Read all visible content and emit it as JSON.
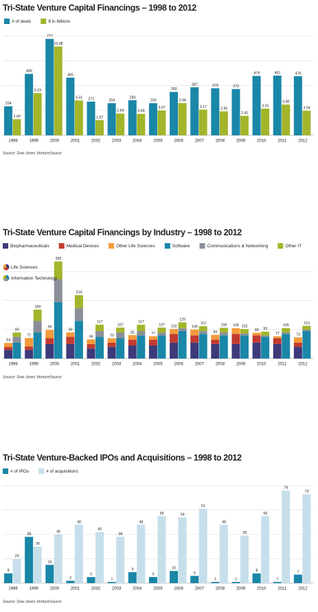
{
  "chart_data": [
    {
      "type": "bar",
      "title": "Tri-State Venture Capital Financings – 1998 to 2012",
      "categories": [
        "1998",
        "1999",
        "2000",
        "2001",
        "2002",
        "2003",
        "2004",
        "2005",
        "2006",
        "2007",
        "2008",
        "2009",
        "2010",
        "2011",
        "2012"
      ],
      "series": [
        {
          "name": "# of deals",
          "color": "#1a87a8",
          "values": [
            234,
            495,
            777,
            465,
            272,
            259,
            283,
            259,
            350,
            387,
            379,
            373,
            479,
            481,
            476
          ]
        },
        {
          "name": "$ in billions",
          "color": "#a3b52a",
          "axis": "y2",
          "values": [
            2.0,
            5.23,
            10.98,
            4.31,
            1.87,
            2.69,
            2.65,
            3.07,
            3.98,
            3.17,
            2.96,
            2.41,
            3.31,
            3.8,
            3.04
          ],
          "value_labels": [
            "2.00",
            "5.23",
            "10.98",
            "4.31",
            "1.87",
            "2.69",
            "2.65",
            "3.07",
            "3.98",
            "3.17",
            "2.96",
            "2.41",
            "3.31",
            "3.80",
            "3.04"
          ]
        }
      ],
      "ylim": [
        0,
        880
      ],
      "yticks": [
        0,
        200,
        400,
        600,
        800
      ],
      "y2lim": [
        0,
        13.5
      ],
      "grid": true,
      "source": "Source: Dow Jones VentureSource"
    },
    {
      "type": "bar",
      "title": "Tri-State Venture Capital Financings by Industry – 1998 to 2012",
      "categories": [
        "1998",
        "1999",
        "2000",
        "2001",
        "2002",
        "2003",
        "2004",
        "2005",
        "2006",
        "2007",
        "2008",
        "2009",
        "2010",
        "2011",
        "2012"
      ],
      "stacks": [
        {
          "name": "Life Sciences",
          "series": [
            {
              "name": "Biopharmaceuticals",
              "color": "#3d3a7a",
              "values": [
                30,
                30,
                50,
                50,
                35,
                40,
                45,
                45,
                55,
                55,
                50,
                50,
                55,
                50,
                40
              ]
            },
            {
              "name": "Medical Devices",
              "color": "#c23b30",
              "values": [
                10,
                12,
                20,
                25,
                15,
                15,
                20,
                20,
                30,
                25,
                15,
                35,
                25,
                20,
                15
              ]
            },
            {
              "name": "Other Life Sciences",
              "color": "#f39a3a",
              "values": [
                14,
                29,
                29,
                15,
                16,
                15,
                16,
                12,
                17,
                20,
                17,
                20,
                9,
                7,
                18
              ]
            }
          ],
          "totals": [
            54,
            71,
            99,
            90,
            66,
            70,
            81,
            77,
            102,
            100,
            82,
            105,
            89,
            77,
            73
          ]
        },
        {
          "name": "Information Technology",
          "series": [
            {
              "name": "Software",
              "color": "#1a87a8",
              "values": [
                55,
                90,
                195,
                130,
                75,
                70,
                80,
                80,
                95,
                85,
                80,
                80,
                75,
                85,
                95
              ]
            },
            {
              "name": "Communications & Networking",
              "color": "#8a8f99",
              "values": [
                20,
                40,
                79,
                44,
                20,
                20,
                15,
                10,
                10,
                10,
                10,
                7,
                5,
                5,
                5
              ]
            },
            {
              "name": "Other IT",
              "color": "#a3b52a",
              "values": [
                15,
                39,
                61,
                45,
                22,
                17,
                22,
                17,
                20,
                17,
                16,
                15,
                13,
                15,
                13
              ]
            }
          ],
          "totals": [
            90,
            169,
            335,
            219,
            117,
            107,
            117,
            107,
            125,
            112,
            106,
            102,
            93,
            105,
            113
          ]
        }
      ],
      "ylim": [
        0,
        370
      ],
      "yticks": [
        0,
        100,
        200,
        300
      ],
      "grid": true,
      "source": "Source: Dow Jones VentureSource"
    },
    {
      "type": "bar",
      "title": "Tri-State Venture-Backed IPOs and Acquisitions – 1998 to 2012",
      "categories": [
        "1998",
        "1999",
        "2000",
        "2001",
        "2002",
        "2003",
        "2004",
        "2005",
        "2006",
        "2007",
        "2008",
        "2009",
        "2010",
        "2011",
        "2012"
      ],
      "series": [
        {
          "name": "# of IPOs",
          "color": "#1a87a8",
          "values": [
            8,
            38,
            15,
            2,
            5,
            1,
            9,
            5,
            10,
            6,
            1,
            1,
            8,
            1,
            7
          ]
        },
        {
          "name": "# of acquisitions",
          "color": "#c6dfeb",
          "values": [
            20,
            30,
            40,
            48,
            42,
            38,
            48,
            55,
            54,
            61,
            48,
            39,
            55,
            76,
            73
          ]
        }
      ],
      "ylim": [
        0,
        84
      ],
      "yticks": [
        0,
        20,
        40,
        60,
        80
      ],
      "grid": true,
      "source": "Source: Dow Jones VentureSource"
    }
  ]
}
